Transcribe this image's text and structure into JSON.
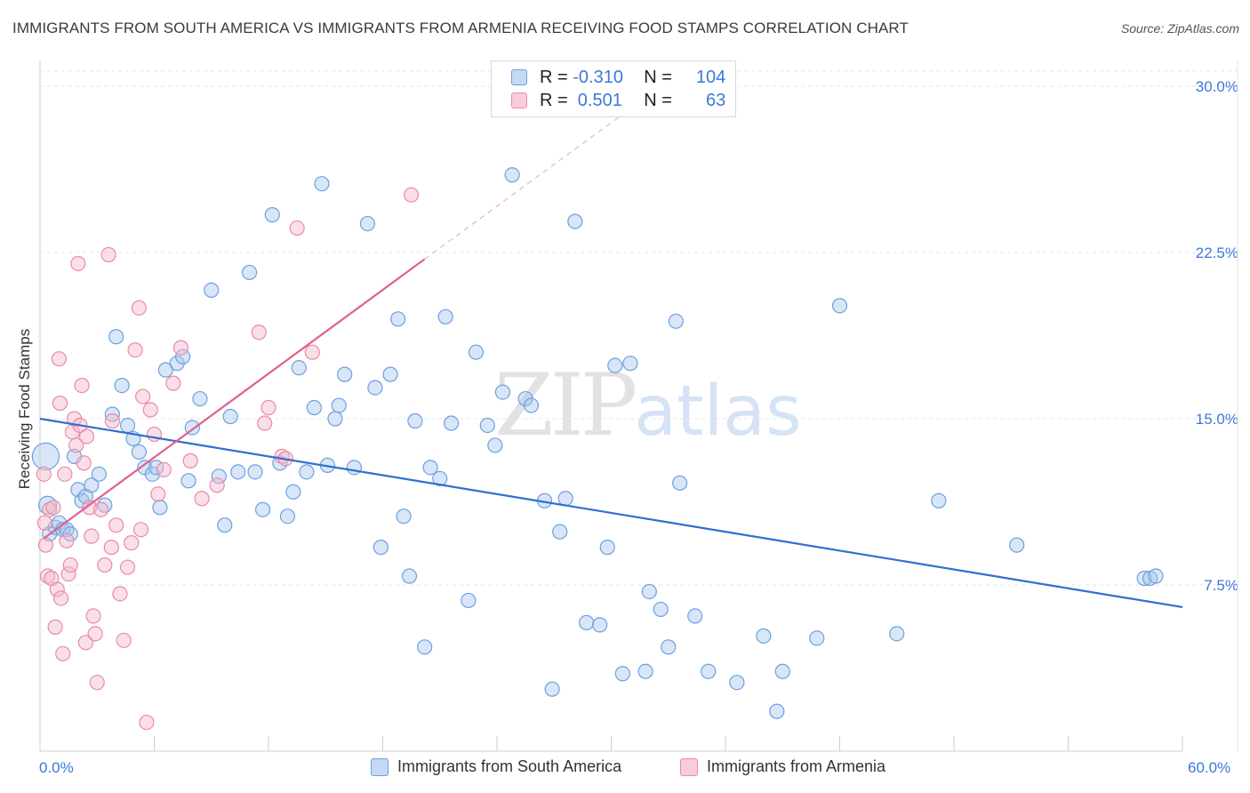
{
  "title": "IMMIGRANTS FROM SOUTH AMERICA VS IMMIGRANTS FROM ARMENIA RECEIVING FOOD STAMPS CORRELATION CHART",
  "source": "Source: ZipAtlas.com",
  "watermark": {
    "zip": "ZIP",
    "atlas": "atlas"
  },
  "legend": {
    "rows": [
      {
        "r_label": "R = ",
        "r_value": "-0.310",
        "n_label": "N = ",
        "n_value": "104"
      },
      {
        "r_label": "R = ",
        "r_value": " 0.501",
        "n_label": "N = ",
        "n_value": "63"
      }
    ]
  },
  "colors": {
    "blue_fill": "#a9c7ef",
    "blue_stroke": "#6d9fe0",
    "blue_line": "#2f6fd0",
    "pink_fill": "#f5b8cb",
    "pink_stroke": "#e98aa8",
    "pink_line": "#e0608c",
    "axis_label": "#3c78d8",
    "grid": "#e6e6e6"
  },
  "chart_data": {
    "type": "scatter",
    "title": "IMMIGRANTS FROM SOUTH AMERICA VS IMMIGRANTS FROM ARMENIA RECEIVING FOOD STAMPS CORRELATION CHART",
    "xlabel": "",
    "ylabel": "Receiving Food Stamps",
    "xlim": [
      0,
      60
    ],
    "ylim": [
      0,
      30
    ],
    "x_tick_labels": {
      "min": "0.0%",
      "max": "60.0%"
    },
    "y_ticks": [
      {
        "value": 7.5,
        "label": "7.5%"
      },
      {
        "value": 15.0,
        "label": "15.0%"
      },
      {
        "value": 22.5,
        "label": "22.5%"
      },
      {
        "value": 30.0,
        "label": "30.0%"
      }
    ],
    "series": [
      {
        "name": "Immigrants from South America",
        "color": "blue",
        "trend": {
          "x1": 0,
          "y1": 15.0,
          "x2": 60,
          "y2": 6.5,
          "dashed_to": null
        },
        "points": [
          [
            0.3,
            13.3,
            14
          ],
          [
            0.4,
            11.1,
            9
          ],
          [
            0.5,
            9.8,
            7
          ],
          [
            0.8,
            10.1,
            7
          ],
          [
            1.0,
            10.3,
            7
          ],
          [
            1.2,
            10.0,
            7
          ],
          [
            1.4,
            10.0,
            7
          ],
          [
            1.6,
            9.8,
            7
          ],
          [
            1.8,
            13.3,
            7
          ],
          [
            2.0,
            11.8,
            7
          ],
          [
            2.2,
            11.3,
            7
          ],
          [
            2.4,
            11.5,
            7
          ],
          [
            2.7,
            12.0,
            7
          ],
          [
            3.1,
            12.5,
            7
          ],
          [
            3.4,
            11.1,
            7
          ],
          [
            3.8,
            15.2,
            7
          ],
          [
            4.0,
            18.7,
            7
          ],
          [
            4.3,
            16.5,
            7
          ],
          [
            4.6,
            14.7,
            7
          ],
          [
            4.9,
            14.1,
            7
          ],
          [
            5.2,
            13.5,
            7
          ],
          [
            5.5,
            12.8,
            7
          ],
          [
            5.9,
            12.5,
            7
          ],
          [
            6.1,
            12.8,
            7
          ],
          [
            6.3,
            11.0,
            7
          ],
          [
            6.6,
            17.2,
            7
          ],
          [
            7.2,
            17.5,
            7
          ],
          [
            7.5,
            17.8,
            7
          ],
          [
            7.8,
            12.2,
            7
          ],
          [
            8.0,
            14.6,
            7
          ],
          [
            8.4,
            15.9,
            7
          ],
          [
            9.0,
            20.8,
            7
          ],
          [
            9.4,
            12.4,
            7
          ],
          [
            9.7,
            10.2,
            7
          ],
          [
            10.0,
            15.1,
            7
          ],
          [
            10.4,
            12.6,
            7
          ],
          [
            11.0,
            21.6,
            7
          ],
          [
            11.3,
            12.6,
            7
          ],
          [
            11.7,
            10.9,
            7
          ],
          [
            12.2,
            24.2,
            7
          ],
          [
            12.6,
            13.0,
            7
          ],
          [
            13.0,
            10.6,
            7
          ],
          [
            13.3,
            11.7,
            7
          ],
          [
            13.6,
            17.3,
            7
          ],
          [
            14.0,
            12.6,
            7
          ],
          [
            14.4,
            15.5,
            7
          ],
          [
            14.8,
            25.6,
            7
          ],
          [
            15.1,
            12.9,
            7
          ],
          [
            15.5,
            15.0,
            7
          ],
          [
            15.7,
            15.6,
            7
          ],
          [
            16.0,
            17.0,
            7
          ],
          [
            16.5,
            12.8,
            7
          ],
          [
            17.2,
            23.8,
            7
          ],
          [
            17.6,
            16.4,
            7
          ],
          [
            17.9,
            9.2,
            7
          ],
          [
            18.4,
            17.0,
            7
          ],
          [
            18.8,
            19.5,
            7
          ],
          [
            19.1,
            10.6,
            7
          ],
          [
            19.4,
            7.9,
            7
          ],
          [
            19.7,
            14.9,
            7
          ],
          [
            20.2,
            4.7,
            7
          ],
          [
            20.5,
            12.8,
            7
          ],
          [
            21.0,
            12.3,
            7
          ],
          [
            21.3,
            19.6,
            7
          ],
          [
            21.6,
            14.8,
            7
          ],
          [
            22.5,
            6.8,
            7
          ],
          [
            22.9,
            18.0,
            7
          ],
          [
            23.5,
            14.7,
            7
          ],
          [
            23.9,
            13.8,
            7
          ],
          [
            24.3,
            16.2,
            7
          ],
          [
            24.8,
            26.0,
            7
          ],
          [
            25.5,
            15.9,
            7
          ],
          [
            25.8,
            15.6,
            7
          ],
          [
            26.5,
            11.3,
            7
          ],
          [
            26.9,
            2.8,
            7
          ],
          [
            27.3,
            9.9,
            7
          ],
          [
            27.6,
            11.4,
            7
          ],
          [
            28.1,
            23.9,
            7
          ],
          [
            28.7,
            5.8,
            7
          ],
          [
            29.4,
            5.7,
            7
          ],
          [
            29.8,
            9.2,
            7
          ],
          [
            30.2,
            17.4,
            7
          ],
          [
            30.6,
            3.5,
            7
          ],
          [
            31.0,
            17.5,
            7
          ],
          [
            31.8,
            3.6,
            7
          ],
          [
            32.0,
            7.2,
            7
          ],
          [
            32.6,
            6.4,
            7
          ],
          [
            33.0,
            4.7,
            7
          ],
          [
            33.4,
            19.4,
            7
          ],
          [
            33.6,
            12.1,
            7
          ],
          [
            34.4,
            6.1,
            7
          ],
          [
            35.1,
            3.6,
            7
          ],
          [
            36.6,
            3.1,
            7
          ],
          [
            38.0,
            5.2,
            7
          ],
          [
            38.7,
            1.8,
            7
          ],
          [
            39.0,
            3.6,
            7
          ],
          [
            40.8,
            5.1,
            7
          ],
          [
            42.0,
            20.1,
            7
          ],
          [
            45.0,
            5.3,
            7
          ],
          [
            47.2,
            11.3,
            7
          ],
          [
            51.3,
            9.3,
            7
          ],
          [
            58.0,
            7.8,
            7
          ],
          [
            58.3,
            7.8,
            7
          ],
          [
            58.6,
            7.9,
            7
          ]
        ]
      },
      {
        "name": "Immigrants from Armenia",
        "color": "pink",
        "trend": {
          "x1": 0.2,
          "y1": 9.6,
          "x2": 20.2,
          "y2": 22.2,
          "dashed_to": {
            "x": 31.5,
            "y": 29.3
          }
        },
        "points": [
          [
            0.2,
            12.5,
            7
          ],
          [
            0.3,
            9.3,
            7
          ],
          [
            0.4,
            7.9,
            7
          ],
          [
            0.5,
            10.9,
            7
          ],
          [
            0.6,
            7.8,
            7
          ],
          [
            0.7,
            11.0,
            7
          ],
          [
            0.8,
            5.6,
            7
          ],
          [
            0.9,
            7.3,
            7
          ],
          [
            1.0,
            17.7,
            7
          ],
          [
            1.1,
            6.9,
            7
          ],
          [
            1.2,
            4.4,
            7
          ],
          [
            1.3,
            12.5,
            7
          ],
          [
            1.4,
            9.5,
            7
          ],
          [
            1.5,
            8.0,
            7
          ],
          [
            1.6,
            8.4,
            7
          ],
          [
            1.7,
            14.4,
            7
          ],
          [
            1.8,
            15.0,
            7
          ],
          [
            1.9,
            13.8,
            7
          ],
          [
            2.0,
            22.0,
            7
          ],
          [
            2.1,
            14.7,
            7
          ],
          [
            2.2,
            16.5,
            7
          ],
          [
            2.3,
            13.0,
            7
          ],
          [
            2.4,
            4.9,
            7
          ],
          [
            2.6,
            11.0,
            7
          ],
          [
            2.7,
            9.7,
            7
          ],
          [
            2.8,
            6.1,
            7
          ],
          [
            2.9,
            5.3,
            7
          ],
          [
            3.0,
            3.1,
            7
          ],
          [
            3.2,
            10.9,
            7
          ],
          [
            3.4,
            8.4,
            7
          ],
          [
            3.6,
            22.4,
            7
          ],
          [
            3.8,
            14.9,
            7
          ],
          [
            4.0,
            10.2,
            7
          ],
          [
            4.2,
            7.1,
            7
          ],
          [
            4.4,
            5.0,
            7
          ],
          [
            4.6,
            8.3,
            7
          ],
          [
            4.8,
            9.4,
            7
          ],
          [
            5.0,
            18.1,
            7
          ],
          [
            5.2,
            20.0,
            7
          ],
          [
            5.4,
            16.0,
            7
          ],
          [
            5.6,
            1.3,
            7
          ],
          [
            5.8,
            15.4,
            7
          ],
          [
            6.0,
            14.3,
            7
          ],
          [
            6.5,
            12.7,
            7
          ],
          [
            7.0,
            16.6,
            7
          ],
          [
            7.4,
            18.2,
            7
          ],
          [
            7.9,
            13.1,
            7
          ],
          [
            8.5,
            11.4,
            7
          ],
          [
            9.3,
            12.0,
            7
          ],
          [
            11.5,
            18.9,
            7
          ],
          [
            11.8,
            14.8,
            7
          ],
          [
            12.0,
            15.5,
            7
          ],
          [
            12.7,
            13.3,
            7
          ],
          [
            12.9,
            13.2,
            7
          ],
          [
            13.5,
            23.6,
            7
          ],
          [
            14.3,
            18.0,
            7
          ],
          [
            19.5,
            25.1,
            7
          ],
          [
            0.25,
            10.3,
            7
          ],
          [
            1.05,
            15.7,
            7
          ],
          [
            2.45,
            14.2,
            7
          ],
          [
            3.75,
            9.2,
            7
          ],
          [
            5.3,
            10.0,
            7
          ],
          [
            6.2,
            11.6,
            7
          ]
        ]
      }
    ]
  },
  "bottom_legend": {
    "blue_label": "Immigrants from South America",
    "pink_label": "Immigrants from Armenia"
  }
}
